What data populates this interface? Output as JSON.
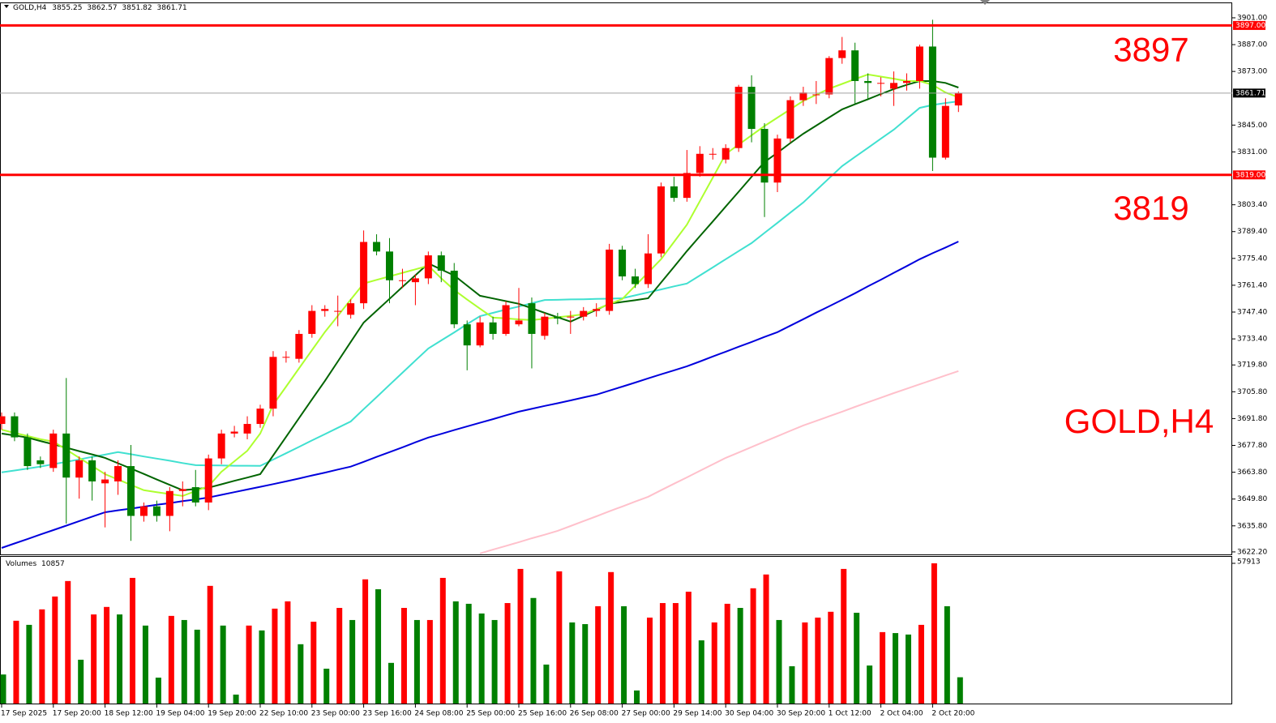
{
  "chart_data": {
    "type": "candlestick",
    "symbol": "GOLD,H4",
    "categories": [
      "17 Sep 2025",
      null,
      null,
      null,
      "17 Sep 20:00",
      null,
      null,
      null,
      "18 Sep 12:00",
      null,
      null,
      null,
      "19 Sep 04:00",
      null,
      null,
      null,
      "19 Sep 20:00",
      null,
      null,
      null,
      "22 Sep 10:00",
      null,
      null,
      null,
      "23 Sep 00:00",
      null,
      null,
      null,
      "23 Sep 16:00",
      null,
      null,
      null,
      "24 Sep 08:00",
      null,
      null,
      null,
      "25 Sep 00:00",
      null,
      null,
      null,
      "25 Sep 16:00",
      null,
      null,
      null,
      "26 Sep 08:00",
      null,
      null,
      null,
      "27 Sep 00:00",
      null,
      null,
      null,
      "29 Sep 14:00",
      null,
      null,
      null,
      "30 Sep 04:00",
      null,
      null,
      null,
      "30 Sep 20:00",
      null,
      null,
      null,
      "1 Oct 12:00",
      null,
      null,
      null,
      "2 Oct 04:00",
      null,
      null,
      null,
      "2 Oct 20:00",
      null,
      null
    ],
    "candles": {
      "open": [
        3689,
        3693,
        3682,
        3670,
        3666,
        3684,
        3661,
        3670,
        3658,
        3659,
        3667,
        3641,
        3646,
        3641,
        3654,
        3656,
        3648,
        3671,
        3684,
        3684,
        3689,
        3697,
        3724,
        3723,
        3736,
        3748,
        3748,
        3746,
        3752,
        3784,
        3779,
        3764,
        3763,
        3765,
        3777,
        3769,
        3741,
        3730,
        3742,
        3736,
        3741,
        3752,
        3735,
        3745,
        3745,
        3745,
        3748,
        3748,
        3780,
        3766,
        3762,
        3778,
        3813,
        3807,
        3820,
        3830,
        3827,
        3833,
        3865,
        3843,
        3815,
        3838,
        3858,
        3861,
        3861,
        3880,
        3884,
        3868,
        3867,
        3864,
        3867,
        3868,
        3886,
        3828,
        3855.25
      ],
      "high": [
        3695,
        3695,
        3684,
        3672,
        3686,
        3713,
        3672,
        3672,
        3664,
        3670,
        3678,
        3648,
        3649,
        3656,
        3659,
        3665,
        3673,
        3686,
        3688,
        3693,
        3699,
        3727,
        3727,
        3738,
        3751,
        3751,
        3756,
        3754,
        3790,
        3788,
        3786,
        3770,
        3767,
        3779,
        3779,
        3773,
        3743,
        3745,
        3745,
        3753,
        3760,
        3755,
        3747,
        3747,
        3748,
        3750,
        3752,
        3783,
        3782,
        3770,
        3788,
        3815,
        3818,
        3832,
        3834,
        3833,
        3835,
        3866,
        3871,
        3846,
        3840,
        3860,
        3865,
        3868,
        3881,
        3891,
        3888,
        3872,
        3870,
        3873,
        3872,
        3887,
        3900,
        3859,
        3862.57
      ],
      "low": [
        3686,
        3680,
        3665,
        3666,
        3664,
        3637,
        3650,
        3649,
        3635,
        3652,
        3628,
        3638,
        3638,
        3633,
        3646,
        3646,
        3644,
        3668,
        3682,
        3681,
        3687,
        3693,
        3721,
        3721,
        3734,
        3745,
        3740,
        3744,
        3749,
        3777,
        3752,
        3760,
        3751,
        3762,
        3763,
        3739,
        3717,
        3729,
        3733,
        3735,
        3740,
        3718,
        3733,
        3741,
        3736,
        3743,
        3745,
        3746,
        3764,
        3760,
        3760,
        3776,
        3805,
        3805,
        3818,
        3827,
        3825,
        3831,
        3836,
        3797,
        3810,
        3836,
        3855,
        3856,
        3859,
        3877,
        3856,
        3858,
        3860,
        3855,
        3863,
        3864,
        3821,
        3827,
        3851.82
      ],
      "close": [
        3693,
        3682,
        3667,
        3668,
        3684,
        3661,
        3670,
        3659,
        3660,
        3667,
        3641,
        3646,
        3641,
        3654,
        3655,
        3648,
        3671,
        3684,
        3685,
        3689,
        3697,
        3724,
        3724,
        3736,
        3748,
        3749,
        3748,
        3752,
        3784,
        3779,
        3764,
        3764,
        3765,
        3777,
        3769,
        3741,
        3730,
        3742,
        3736,
        3751,
        3743,
        3736,
        3745,
        3744,
        3745,
        3748,
        3749,
        3780,
        3766,
        3762,
        3778,
        3813,
        3807,
        3820,
        3830,
        3830,
        3833,
        3865,
        3843,
        3815,
        3838,
        3858,
        3862,
        3861,
        3880,
        3884,
        3868,
        3867,
        3867,
        3867,
        3868,
        3886,
        3828,
        3855,
        3861.71
      ]
    },
    "up_color": "#ff0000",
    "down_color": "#008000",
    "ylim": [
      3620.9,
      3908.6
    ],
    "yticks": [
      {
        "value": 3901,
        "label": "3901.00"
      },
      {
        "value": 3887,
        "label": "3887.00"
      },
      {
        "value": 3873,
        "label": "3873.00"
      },
      {
        "value": 3845,
        "label": "3845.00"
      },
      {
        "value": 3831,
        "label": "3831.00"
      },
      {
        "value": 3803.4,
        "label": "3803.40"
      },
      {
        "value": 3789.4,
        "label": "3789.40"
      },
      {
        "value": 3775.4,
        "label": "3775.40"
      },
      {
        "value": 3761.4,
        "label": "3761.40"
      },
      {
        "value": 3747.4,
        "label": "3747.40"
      },
      {
        "value": 3733.4,
        "label": "3733.40"
      },
      {
        "value": 3719.8,
        "label": "3719.80"
      },
      {
        "value": 3705.8,
        "label": "3705.80"
      },
      {
        "value": 3691.8,
        "label": "3691.80"
      },
      {
        "value": 3677.8,
        "label": "3677.80"
      },
      {
        "value": 3663.8,
        "label": "3663.80"
      },
      {
        "value": 3649.8,
        "label": "3649.80"
      },
      {
        "value": 3635.8,
        "label": "3635.80"
      },
      {
        "value": 3622.2,
        "label": "3622.20"
      }
    ],
    "moving_averages": [
      {
        "color": "#ffc0cb",
        "values": [
          null,
          null,
          null,
          null,
          null,
          null,
          null,
          null,
          null,
          null,
          null,
          null,
          null,
          null,
          null,
          null,
          null,
          null,
          null,
          null,
          null,
          null,
          null,
          null,
          null,
          null,
          null,
          null,
          null,
          null,
          null,
          null,
          null,
          null,
          null,
          null,
          null,
          3621.4,
          3623.4,
          3625.3,
          3627.3,
          3629.3,
          3631.2,
          3633.2,
          3635.7,
          3638.3,
          3640.8,
          3643.4,
          3645.9,
          3648.5,
          3651,
          3654.4,
          3657.8,
          3661.1,
          3664.5,
          3667.9,
          3671.3,
          3674.1,
          3676.9,
          3679.8,
          3682.6,
          3685.4,
          3688.2,
          3690.6,
          3693,
          3695.4,
          3697.9,
          3700.3,
          3702.7,
          3705.1,
          3707.4,
          3709.7,
          3712,
          3714.3,
          3716.6
        ]
      },
      {
        "color": "#0000dd",
        "values": [
          3624.3,
          3626.6,
          3628.9,
          3631.3,
          3633.6,
          3635.9,
          3638.3,
          3640.6,
          3642.9,
          3643.9,
          3644.8,
          3645.8,
          3646.8,
          3647.7,
          3648.7,
          3649.6,
          3650.6,
          3652,
          3653.4,
          3654.8,
          3656.2,
          3657.6,
          3659,
          3660.5,
          3662.1,
          3663.6,
          3665.2,
          3666.7,
          3669.2,
          3671.8,
          3674.3,
          3676.8,
          3679.4,
          3681.9,
          3683.8,
          3685.8,
          3687.7,
          3689.6,
          3691.5,
          3693.5,
          3695.4,
          3696.9,
          3698.4,
          3699.8,
          3701.3,
          3702.8,
          3704.3,
          3706.4,
          3708.5,
          3710.6,
          3712.8,
          3714.9,
          3717,
          3719.1,
          3721.6,
          3724.2,
          3726.7,
          3729.3,
          3731.8,
          3734.4,
          3736.9,
          3740.3,
          3743.7,
          3747.1,
          3750.4,
          3753.8,
          3757.2,
          3760.8,
          3764.3,
          3767.9,
          3771.4,
          3775,
          3778.1,
          3781.1,
          3784.2
        ]
      },
      {
        "color": "#40e0d0",
        "values": [
          3663.7,
          3664.7,
          3665.7,
          3666.7,
          3668,
          3669.2,
          3670.5,
          3671.8,
          3673,
          3674.3,
          3673.2,
          3672,
          3670.9,
          3669.8,
          3668.6,
          3667.5,
          3667.4,
          3667.3,
          3667.2,
          3667.2,
          3667.1,
          3670.4,
          3673.7,
          3677,
          3680.4,
          3683.7,
          3687,
          3690.3,
          3696.7,
          3703,
          3709.4,
          3715.7,
          3722.1,
          3728.4,
          3732.6,
          3736.8,
          3741.1,
          3745.3,
          3747,
          3748.7,
          3750.3,
          3752,
          3753.7,
          3753.8,
          3754,
          3754.1,
          3754.3,
          3754.4,
          3754.6,
          3756.1,
          3757.7,
          3759.2,
          3760.8,
          3762.3,
          3766.5,
          3770.7,
          3775,
          3779.2,
          3783.4,
          3788.7,
          3794,
          3799.3,
          3804.6,
          3810.9,
          3817.3,
          3823.6,
          3828.4,
          3833.1,
          3837.9,
          3842.6,
          3848.3,
          3854,
          3855.5,
          3856.5,
          3857.4
        ]
      },
      {
        "color": "#006400",
        "values": [
          3684,
          3683,
          3681.9,
          3680.1,
          3678.4,
          3676.6,
          3674.8,
          3673.1,
          3671.3,
          3668.5,
          3665.7,
          3662.9,
          3660,
          3657.2,
          3654.4,
          3655,
          3655.7,
          3657.5,
          3659.3,
          3661,
          3662.8,
          3672.5,
          3682.3,
          3692,
          3701.8,
          3711.5,
          3721.6,
          3731.8,
          3741.9,
          3748.1,
          3754.3,
          3760.5,
          3766.6,
          3772.8,
          3769.6,
          3766.5,
          3761.2,
          3755.9,
          3754.5,
          3753.1,
          3751.7,
          3749.4,
          3747,
          3744.7,
          3742.4,
          3745.5,
          3748.6,
          3751.7,
          3752.7,
          3753.6,
          3754.6,
          3762.8,
          3771,
          3779.2,
          3787,
          3794.7,
          3802.5,
          3810.2,
          3818,
          3825.7,
          3830.6,
          3835.6,
          3840.5,
          3844.7,
          3849,
          3853.2,
          3855.9,
          3858.5,
          3861.2,
          3863.8,
          3866,
          3868,
          3868,
          3867,
          3864.6
        ]
      },
      {
        "color": "#adff2f",
        "values": [
          3686,
          3684.3,
          3682.7,
          3681,
          3679.8,
          3675.6,
          3671.3,
          3667.1,
          3662.8,
          3660,
          3657.2,
          3654.4,
          3653.4,
          3652.4,
          3651.4,
          3654,
          3656.5,
          3664,
          3669.5,
          3675,
          3684,
          3699,
          3708.5,
          3718,
          3727.5,
          3737,
          3745.4,
          3753.9,
          3762.3,
          3764.2,
          3766,
          3767.9,
          3769.7,
          3771.6,
          3765,
          3758.9,
          3753.9,
          3749.2,
          3744.5,
          3744.1,
          3743.6,
          3743.2,
          3743.9,
          3744.7,
          3745.4,
          3746.2,
          3748.9,
          3751.5,
          3754.2,
          3761.1,
          3768,
          3775,
          3784,
          3793,
          3805.3,
          3817.6,
          3829.9,
          3834.8,
          3839.7,
          3844.5,
          3848.9,
          3853.2,
          3857.6,
          3860.8,
          3864,
          3866.5,
          3869,
          3871.4,
          3870.3,
          3869.2,
          3868,
          3868,
          3866,
          3862,
          3859.5
        ]
      }
    ],
    "levels": [
      {
        "value": 3897,
        "label": "3897.00"
      },
      {
        "value": 3819,
        "label": "3819.00"
      }
    ],
    "level_color": "#ff0000",
    "watermark": "GOLD,H4",
    "volumes": {
      "label": "Volumes",
      "vlim": [
        0,
        57913
      ],
      "values": [
        12000,
        34200,
        32500,
        38900,
        44200,
        50600,
        18100,
        36800,
        39900,
        36800,
        51900,
        32200,
        10700,
        36200,
        34500,
        30500,
        48600,
        32200,
        3700,
        32200,
        30200,
        39200,
        42200,
        24500,
        33800,
        14400,
        39500,
        34500,
        51300,
        47200,
        16800,
        39500,
        34500,
        34500,
        51900,
        42200,
        41200,
        37200,
        34500,
        41500,
        55600,
        43600,
        16100,
        54600,
        33500,
        32800,
        40200,
        54300,
        40200,
        5400,
        35500,
        41500,
        41500,
        46200,
        26100,
        33500,
        41200,
        39500,
        47600,
        53300,
        34500,
        15400,
        33500,
        35500,
        37900,
        55600,
        37500,
        15700,
        29500,
        29100,
        28500,
        32500,
        57913,
        40200,
        10857
      ]
    }
  }
}
